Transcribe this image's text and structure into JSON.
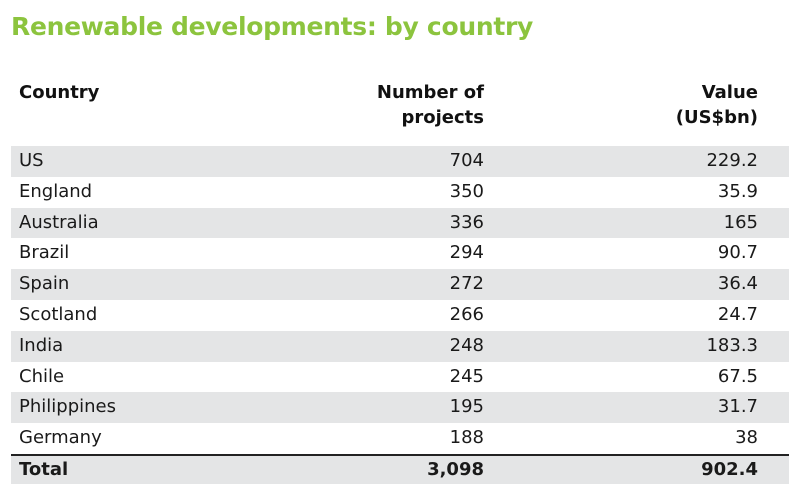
{
  "title": "Renewable developments: by country",
  "chart_data": {
    "type": "table",
    "title": "Renewable developments: by country",
    "columns": [
      {
        "line1": "Country",
        "line2": ""
      },
      {
        "line1": "Number of",
        "line2": "projects"
      },
      {
        "line1": "Value",
        "line2": "(US$bn)"
      }
    ],
    "rows": [
      {
        "country": "US",
        "projects": "704",
        "value": "229.2"
      },
      {
        "country": "England",
        "projects": "350",
        "value": "35.9"
      },
      {
        "country": "Australia",
        "projects": "336",
        "value": "165"
      },
      {
        "country": "Brazil",
        "projects": "294",
        "value": "90.7"
      },
      {
        "country": "Spain",
        "projects": "272",
        "value": "36.4"
      },
      {
        "country": "Scotland",
        "projects": "266",
        "value": "24.7"
      },
      {
        "country": "India",
        "projects": "248",
        "value": "183.3"
      },
      {
        "country": "Chile",
        "projects": "245",
        "value": "67.5"
      },
      {
        "country": "Philippines",
        "projects": "195",
        "value": "31.7"
      },
      {
        "country": "Germany",
        "projects": "188",
        "value": "38"
      }
    ],
    "total": {
      "country": "Total",
      "projects": "3,098",
      "value": "902.4"
    }
  },
  "colors": {
    "title": "#8cc43e",
    "row_shade": "#e4e5e6",
    "text": "#1a1a1a"
  }
}
